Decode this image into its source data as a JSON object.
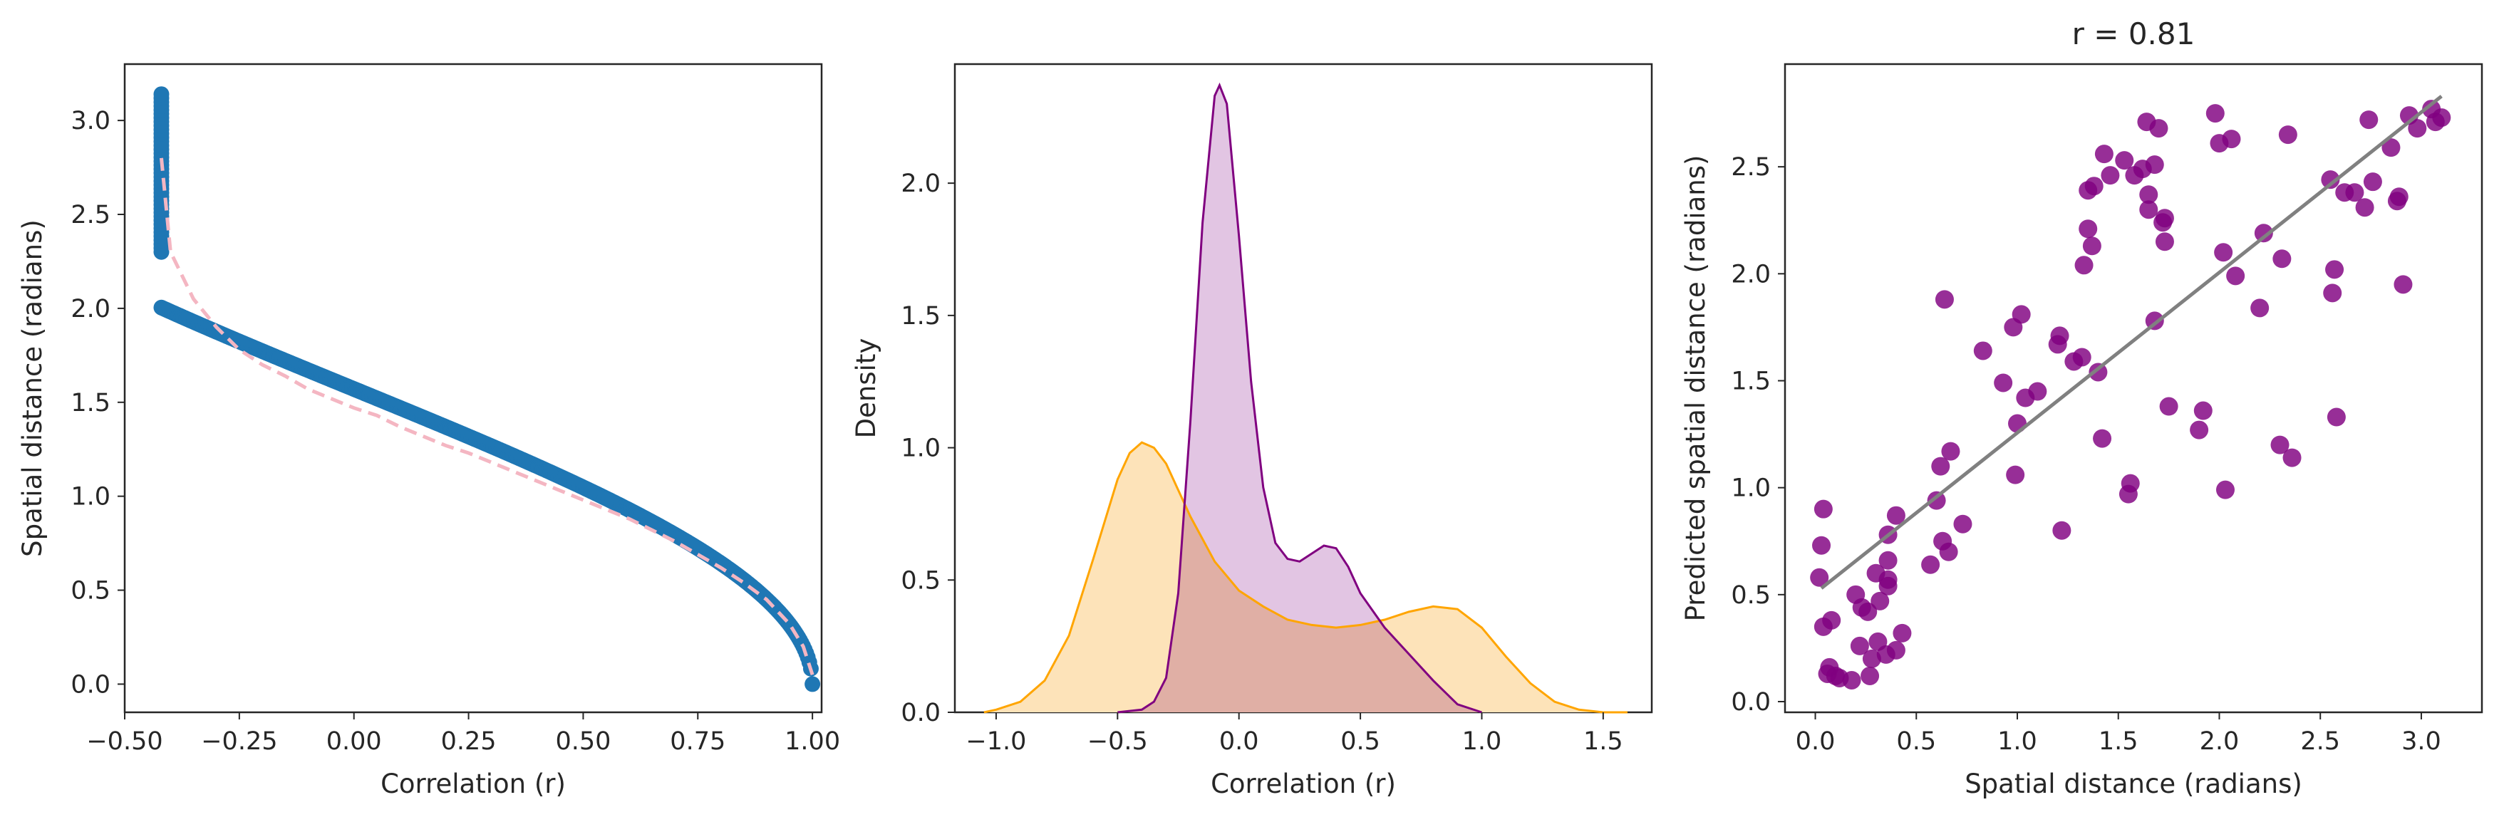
{
  "figure": {
    "panels": [
      {
        "title": "",
        "xlabel": "Correlation (r)",
        "ylabel": "Spatial distance (radians)",
        "xticks": [
          "−0.50",
          "−0.25",
          "0.00",
          "0.25",
          "0.50",
          "0.75",
          "1.00"
        ],
        "yticks": [
          "0.0",
          "0.5",
          "1.0",
          "1.5",
          "2.0",
          "2.5",
          "3.0"
        ]
      },
      {
        "title": "",
        "xlabel": "Correlation (r)",
        "ylabel": "Density",
        "xticks": [
          "−1.0",
          "−0.5",
          "0.0",
          "0.5",
          "1.0",
          "1.5"
        ],
        "yticks": [
          "0.0",
          "0.5",
          "1.0",
          "1.5",
          "2.0"
        ]
      },
      {
        "title": "r = 0.81",
        "xlabel": "Spatial distance (radians)",
        "ylabel": "Predicted spatial distance (radians)",
        "xticks": [
          "0.0",
          "0.5",
          "1.0",
          "1.5",
          "2.0",
          "2.5",
          "3.0"
        ],
        "yticks": [
          "0.0",
          "0.5",
          "1.0",
          "1.5",
          "2.0",
          "2.5"
        ]
      }
    ]
  },
  "chart_data": [
    {
      "type": "scatter",
      "title": "",
      "xlabel": "Correlation (r)",
      "ylabel": "Spatial distance (radians)",
      "xlim": [
        -0.5,
        1.02
      ],
      "ylim": [
        -0.15,
        3.3
      ],
      "grid": false,
      "point_color": "#1f77b4",
      "curve_color": "#f4b6c2",
      "scatter_relation": "distance = arccos(r)",
      "scatter_r_range": [
        -0.42,
        1.0
      ],
      "trend_line": {
        "style": "dashed",
        "x": [
          -0.42,
          -0.4,
          -0.35,
          -0.3,
          -0.25,
          -0.2,
          -0.15,
          -0.1,
          -0.05,
          0.0,
          0.05,
          0.1,
          0.15,
          0.2,
          0.25,
          0.3,
          0.35,
          0.4,
          0.45,
          0.5,
          0.55,
          0.6,
          0.65,
          0.7,
          0.75,
          0.8,
          0.85,
          0.9,
          0.95,
          0.98,
          1.0
        ],
        "y": [
          2.8,
          2.3,
          2.05,
          1.9,
          1.78,
          1.7,
          1.64,
          1.57,
          1.52,
          1.47,
          1.43,
          1.37,
          1.32,
          1.27,
          1.23,
          1.18,
          1.13,
          1.08,
          1.03,
          0.98,
          0.93,
          0.88,
          0.82,
          0.76,
          0.69,
          0.62,
          0.54,
          0.45,
          0.32,
          0.2,
          0.05
        ]
      }
    },
    {
      "type": "area",
      "title": "",
      "xlabel": "Correlation (r)",
      "ylabel": "Density",
      "xlim": [
        -1.17,
        1.7
      ],
      "ylim": [
        0,
        2.45
      ],
      "grid": false,
      "series": [
        {
          "color": "#800080",
          "fill": "#dfbfe0",
          "x": [
            -0.5,
            -0.4,
            -0.35,
            -0.3,
            -0.25,
            -0.2,
            -0.15,
            -0.1,
            -0.08,
            -0.05,
            0.0,
            0.05,
            0.1,
            0.15,
            0.2,
            0.25,
            0.3,
            0.35,
            0.4,
            0.45,
            0.5,
            0.6,
            0.7,
            0.8,
            0.9,
            1.0
          ],
          "values": [
            0.0,
            0.01,
            0.04,
            0.13,
            0.45,
            1.1,
            1.85,
            2.33,
            2.37,
            2.3,
            1.8,
            1.25,
            0.85,
            0.64,
            0.58,
            0.57,
            0.6,
            0.63,
            0.62,
            0.55,
            0.45,
            0.32,
            0.22,
            0.12,
            0.03,
            0.0
          ]
        },
        {
          "color": "#ffa500",
          "fill": "#fde3b9",
          "x": [
            -1.05,
            -1.0,
            -0.9,
            -0.8,
            -0.7,
            -0.6,
            -0.5,
            -0.45,
            -0.4,
            -0.35,
            -0.3,
            -0.2,
            -0.1,
            0.0,
            0.1,
            0.2,
            0.3,
            0.4,
            0.5,
            0.6,
            0.7,
            0.8,
            0.9,
            1.0,
            1.1,
            1.2,
            1.3,
            1.4,
            1.5,
            1.6
          ],
          "values": [
            0.0,
            0.01,
            0.04,
            0.12,
            0.29,
            0.58,
            0.88,
            0.98,
            1.02,
            1.0,
            0.94,
            0.74,
            0.57,
            0.46,
            0.4,
            0.35,
            0.33,
            0.32,
            0.33,
            0.35,
            0.38,
            0.4,
            0.39,
            0.32,
            0.21,
            0.11,
            0.04,
            0.01,
            0.0,
            0.0
          ]
        }
      ],
      "overlap_fill": "#e5b8a8"
    },
    {
      "type": "scatter",
      "title": "r = 0.81",
      "xlabel": "Spatial distance (radians)",
      "ylabel": "Predicted spatial distance (radians)",
      "xlim": [
        -0.15,
        3.3
      ],
      "ylim": [
        -0.05,
        2.98
      ],
      "grid": false,
      "point_color": "#800080",
      "fit_line": {
        "x": [
          0.03,
          3.1
        ],
        "y": [
          0.53,
          2.83
        ],
        "color": "#808080"
      },
      "points": [
        [
          0.02,
          0.58
        ],
        [
          0.03,
          0.73
        ],
        [
          0.04,
          0.9
        ],
        [
          0.04,
          0.35
        ],
        [
          0.06,
          0.13
        ],
        [
          0.07,
          0.16
        ],
        [
          0.08,
          0.38
        ],
        [
          0.1,
          0.12
        ],
        [
          0.12,
          0.11
        ],
        [
          0.18,
          0.1
        ],
        [
          0.2,
          0.5
        ],
        [
          0.22,
          0.26
        ],
        [
          0.23,
          0.44
        ],
        [
          0.26,
          0.42
        ],
        [
          0.27,
          0.12
        ],
        [
          0.28,
          0.2
        ],
        [
          0.3,
          0.6
        ],
        [
          0.31,
          0.28
        ],
        [
          0.32,
          0.47
        ],
        [
          0.35,
          0.22
        ],
        [
          0.36,
          0.54
        ],
        [
          0.36,
          0.57
        ],
        [
          0.36,
          0.66
        ],
        [
          0.36,
          0.78
        ],
        [
          0.4,
          0.24
        ],
        [
          0.4,
          0.87
        ],
        [
          0.43,
          0.32
        ],
        [
          0.57,
          0.64
        ],
        [
          0.6,
          0.94
        ],
        [
          0.62,
          1.1
        ],
        [
          0.63,
          0.75
        ],
        [
          0.64,
          1.88
        ],
        [
          0.66,
          0.7
        ],
        [
          0.67,
          1.17
        ],
        [
          0.73,
          0.83
        ],
        [
          0.83,
          1.64
        ],
        [
          0.93,
          1.49
        ],
        [
          0.98,
          1.75
        ],
        [
          0.99,
          1.06
        ],
        [
          1.0,
          1.3
        ],
        [
          1.02,
          1.81
        ],
        [
          1.04,
          1.42
        ],
        [
          1.1,
          1.45
        ],
        [
          1.2,
          1.67
        ],
        [
          1.21,
          1.71
        ],
        [
          1.22,
          0.8
        ],
        [
          1.28,
          1.59
        ],
        [
          1.32,
          1.61
        ],
        [
          1.33,
          2.04
        ],
        [
          1.35,
          2.21
        ],
        [
          1.35,
          2.39
        ],
        [
          1.37,
          2.13
        ],
        [
          1.38,
          2.41
        ],
        [
          1.4,
          1.54
        ],
        [
          1.42,
          1.23
        ],
        [
          1.43,
          2.56
        ],
        [
          1.46,
          2.46
        ],
        [
          1.53,
          2.53
        ],
        [
          1.55,
          0.97
        ],
        [
          1.56,
          1.02
        ],
        [
          1.58,
          2.46
        ],
        [
          1.62,
          2.49
        ],
        [
          1.64,
          2.71
        ],
        [
          1.65,
          2.37
        ],
        [
          1.65,
          2.3
        ],
        [
          1.68,
          1.78
        ],
        [
          1.68,
          2.51
        ],
        [
          1.7,
          2.68
        ],
        [
          1.72,
          2.24
        ],
        [
          1.73,
          2.26
        ],
        [
          1.73,
          2.15
        ],
        [
          1.75,
          1.38
        ],
        [
          1.9,
          1.27
        ],
        [
          1.92,
          1.36
        ],
        [
          1.98,
          2.75
        ],
        [
          2.0,
          2.61
        ],
        [
          2.02,
          2.1
        ],
        [
          2.03,
          0.99
        ],
        [
          2.06,
          2.63
        ],
        [
          2.08,
          1.99
        ],
        [
          2.2,
          1.84
        ],
        [
          2.22,
          2.19
        ],
        [
          2.3,
          1.2
        ],
        [
          2.31,
          2.07
        ],
        [
          2.34,
          2.65
        ],
        [
          2.36,
          1.14
        ],
        [
          2.55,
          2.44
        ],
        [
          2.56,
          1.91
        ],
        [
          2.57,
          2.02
        ],
        [
          2.58,
          1.33
        ],
        [
          2.62,
          2.38
        ],
        [
          2.67,
          2.38
        ],
        [
          2.72,
          2.31
        ],
        [
          2.74,
          2.72
        ],
        [
          2.76,
          2.43
        ],
        [
          2.85,
          2.59
        ],
        [
          2.88,
          2.34
        ],
        [
          2.89,
          2.36
        ],
        [
          2.91,
          1.95
        ],
        [
          2.94,
          2.74
        ],
        [
          2.98,
          2.68
        ],
        [
          3.05,
          2.77
        ],
        [
          3.07,
          2.71
        ],
        [
          3.1,
          2.73
        ]
      ]
    }
  ]
}
